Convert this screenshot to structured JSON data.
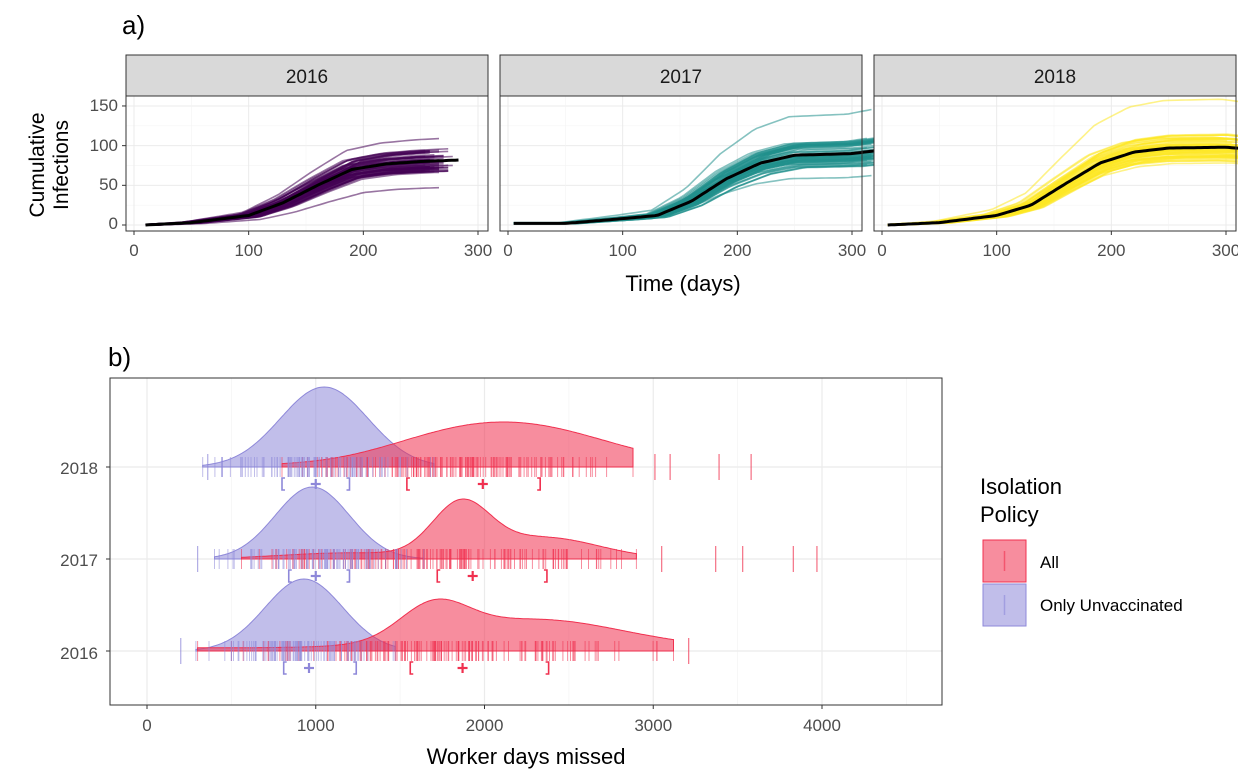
{
  "panel_a": {
    "label": "a)",
    "ylabel_line1": "Cumulative",
    "ylabel_line2": "Infections",
    "xlabel": "Time (days)",
    "x_ticks": [
      "0",
      "100",
      "200",
      "300"
    ],
    "y_ticks": [
      "0",
      "50",
      "100",
      "150"
    ],
    "facets": [
      "2016",
      "2017",
      "2018"
    ]
  },
  "panel_b": {
    "label": "b)",
    "xlabel": "Worker days missed",
    "x_ticks": [
      "0",
      "1000",
      "2000",
      "3000",
      "4000"
    ],
    "y_ticks": [
      "2016",
      "2017",
      "2018"
    ]
  },
  "legend": {
    "title_line1": "Isolation",
    "title_line2": "Policy",
    "items": [
      {
        "label": "All",
        "color": "#f0304f"
      },
      {
        "label": "Only Unvaccinated",
        "color": "#8e88d9"
      }
    ]
  },
  "chart_data": [
    {
      "type": "line",
      "panel": "a",
      "xlim": [
        0,
        300
      ],
      "ylim": [
        0,
        155
      ],
      "grid": true,
      "facets": [
        {
          "facet": "2016",
          "color": "#440154",
          "x_range": [
            10,
            285
          ],
          "mean_curve": {
            "x": [
              10,
              50,
              100,
              130,
              160,
              190,
              220,
              250,
              285
            ],
            "y": [
              0,
              3,
              12,
              28,
              50,
              70,
              77,
              80,
              82
            ]
          },
          "max_final": 110,
          "min_final": 48
        },
        {
          "facet": "2017",
          "color": "#21908c",
          "x_range": [
            5,
            345
          ],
          "mean_curve": {
            "x": [
              5,
              50,
              100,
              130,
              160,
              190,
              220,
              250,
              300,
              345
            ],
            "y": [
              2,
              2,
              8,
              12,
              30,
              58,
              78,
              88,
              90,
              98
            ]
          },
          "max_final": 152,
          "min_final": 65
        },
        {
          "facet": "2018",
          "color": "#fde725",
          "x_range": [
            5,
            335
          ],
          "mean_curve": {
            "x": [
              5,
              50,
              100,
              130,
              160,
              190,
              220,
              250,
              300,
              335
            ],
            "y": [
              0,
              3,
              12,
              25,
              52,
              78,
              92,
              97,
              98,
              94
            ]
          },
          "max_final": 152,
          "min_final": 75
        }
      ]
    },
    {
      "type": "area",
      "panel": "b",
      "xlim": [
        0,
        4500
      ],
      "categories": [
        "2016",
        "2017",
        "2018"
      ],
      "series": [
        {
          "name": "All",
          "color": "#f0304f",
          "groups": [
            {
              "year": "2016",
              "range": [
                300,
                3120
              ],
              "mode": 1700,
              "mean": 1870,
              "ci": [
                1560,
                2380
              ]
            },
            {
              "year": "2017",
              "range": [
                560,
                2900
              ],
              "mode": 1860,
              "mean": 1930,
              "ci": [
                1720,
                2370
              ]
            },
            {
              "year": "2018",
              "range": [
                800,
                2880
              ],
              "mode": 2250,
              "mean": 1990,
              "ci": [
                1540,
                2330
              ]
            }
          ]
        },
        {
          "name": "Only Unvaccinated",
          "color": "#8e88d9",
          "groups": [
            {
              "year": "2016",
              "range": [
                290,
                1470
              ],
              "mode": 930,
              "mean": 960,
              "ci": [
                810,
                1240
              ]
            },
            {
              "year": "2017",
              "range": [
                400,
                1640
              ],
              "mode": 980,
              "mean": 1000,
              "ci": [
                840,
                1200
              ]
            },
            {
              "year": "2018",
              "range": [
                330,
                1700
              ],
              "mode": 1050,
              "mean": 1000,
              "ci": [
                800,
                1200
              ]
            }
          ]
        }
      ],
      "outlier_ticks": {
        "All": {
          "2016": [
            3210
          ],
          "2017": [
            3050,
            3370,
            3530,
            3830,
            3970
          ],
          "2018": [
            3010,
            3100,
            3390,
            3580
          ]
        },
        "Only Unvaccinated": {
          "2016": [
            200
          ],
          "2017": [
            300
          ],
          "2018": [
            360
          ]
        }
      }
    }
  ]
}
